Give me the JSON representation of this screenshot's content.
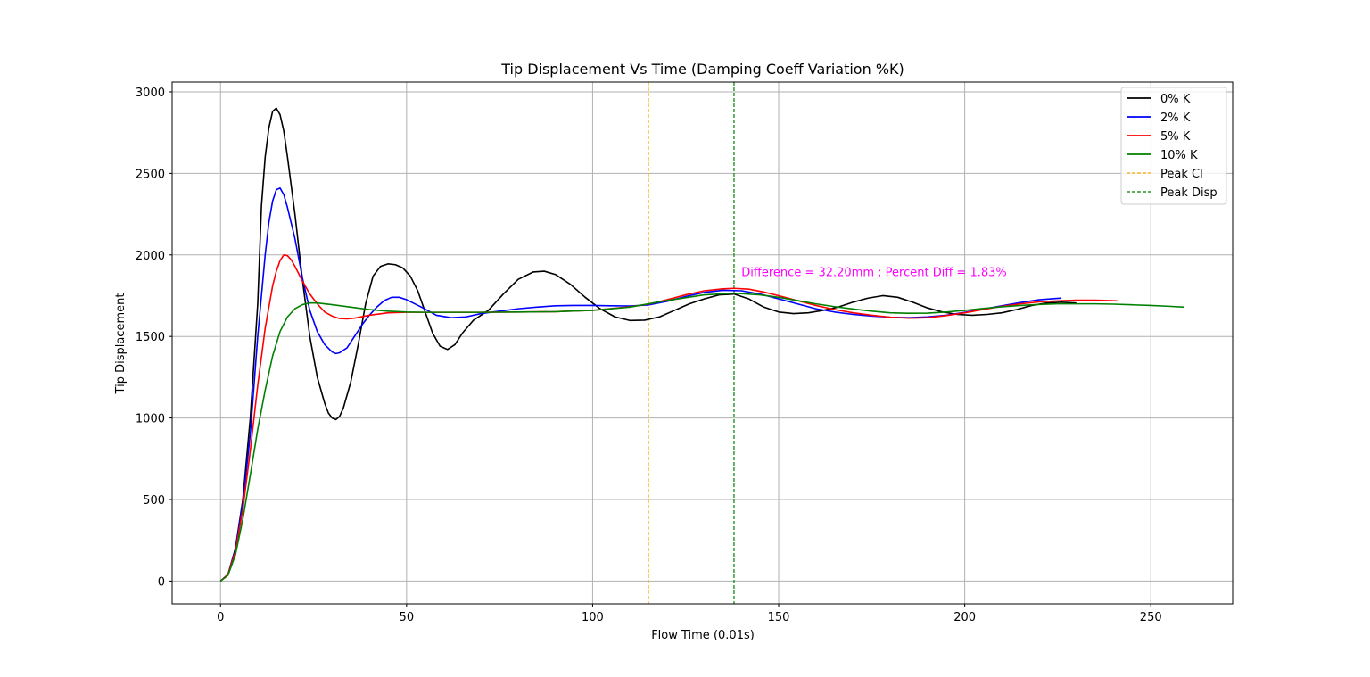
{
  "chart_data": {
    "type": "line",
    "title": "Tip Displacement Vs Time (Damping Coeff Variation %K)",
    "xlabel": "Flow Time (0.01s)",
    "ylabel": "Tip Displacement",
    "xlim": [
      -13,
      272
    ],
    "ylim": [
      -140,
      3060
    ],
    "xticks": [
      0,
      50,
      100,
      150,
      200,
      250
    ],
    "yticks": [
      0,
      500,
      1000,
      1500,
      2000,
      2500,
      3000
    ],
    "grid": true,
    "legend_position": "top-right",
    "series": [
      {
        "name": "0% K",
        "color": "#000000",
        "points": [
          [
            0,
            0
          ],
          [
            2,
            40
          ],
          [
            4,
            200
          ],
          [
            6,
            500
          ],
          [
            8,
            1000
          ],
          [
            10,
            1700
          ],
          [
            11,
            2300
          ],
          [
            12,
            2600
          ],
          [
            13,
            2780
          ],
          [
            14,
            2880
          ],
          [
            15,
            2900
          ],
          [
            16,
            2860
          ],
          [
            17,
            2760
          ],
          [
            18,
            2600
          ],
          [
            20,
            2250
          ],
          [
            22,
            1850
          ],
          [
            24,
            1500
          ],
          [
            26,
            1250
          ],
          [
            28,
            1090
          ],
          [
            29,
            1030
          ],
          [
            30,
            1000
          ],
          [
            31,
            990
          ],
          [
            32,
            1010
          ],
          [
            33,
            1060
          ],
          [
            35,
            1220
          ],
          [
            37,
            1450
          ],
          [
            39,
            1700
          ],
          [
            41,
            1870
          ],
          [
            43,
            1930
          ],
          [
            45,
            1945
          ],
          [
            47,
            1940
          ],
          [
            49,
            1920
          ],
          [
            51,
            1870
          ],
          [
            53,
            1780
          ],
          [
            55,
            1650
          ],
          [
            57,
            1520
          ],
          [
            59,
            1440
          ],
          [
            61,
            1420
          ],
          [
            63,
            1450
          ],
          [
            65,
            1520
          ],
          [
            68,
            1600
          ],
          [
            72,
            1660
          ],
          [
            76,
            1760
          ],
          [
            80,
            1850
          ],
          [
            84,
            1895
          ],
          [
            87,
            1900
          ],
          [
            90,
            1880
          ],
          [
            94,
            1820
          ],
          [
            98,
            1740
          ],
          [
            102,
            1670
          ],
          [
            106,
            1620
          ],
          [
            110,
            1598
          ],
          [
            114,
            1600
          ],
          [
            118,
            1620
          ],
          [
            122,
            1660
          ],
          [
            126,
            1700
          ],
          [
            130,
            1730
          ],
          [
            134,
            1755
          ],
          [
            138,
            1760
          ],
          [
            142,
            1730
          ],
          [
            146,
            1680
          ],
          [
            150,
            1650
          ],
          [
            154,
            1640
          ],
          [
            158,
            1645
          ],
          [
            162,
            1660
          ],
          [
            166,
            1680
          ],
          [
            170,
            1710
          ],
          [
            174,
            1735
          ],
          [
            178,
            1750
          ],
          [
            182,
            1740
          ],
          [
            186,
            1710
          ],
          [
            190,
            1675
          ],
          [
            194,
            1650
          ],
          [
            198,
            1635
          ],
          [
            202,
            1630
          ],
          [
            206,
            1635
          ],
          [
            210,
            1645
          ],
          [
            214,
            1665
          ],
          [
            218,
            1690
          ],
          [
            222,
            1705
          ],
          [
            226,
            1710
          ],
          [
            230,
            1705
          ]
        ]
      },
      {
        "name": "2% K",
        "color": "#0000ff",
        "points": [
          [
            0,
            0
          ],
          [
            2,
            40
          ],
          [
            4,
            190
          ],
          [
            6,
            480
          ],
          [
            8,
            900
          ],
          [
            10,
            1500
          ],
          [
            12,
            2000
          ],
          [
            13,
            2200
          ],
          [
            14,
            2330
          ],
          [
            15,
            2400
          ],
          [
            16,
            2410
          ],
          [
            17,
            2370
          ],
          [
            18,
            2290
          ],
          [
            20,
            2100
          ],
          [
            22,
            1860
          ],
          [
            24,
            1660
          ],
          [
            26,
            1530
          ],
          [
            28,
            1450
          ],
          [
            30,
            1405
          ],
          [
            31,
            1395
          ],
          [
            32,
            1400
          ],
          [
            34,
            1430
          ],
          [
            36,
            1500
          ],
          [
            38,
            1570
          ],
          [
            40,
            1630
          ],
          [
            42,
            1680
          ],
          [
            44,
            1720
          ],
          [
            46,
            1740
          ],
          [
            48,
            1740
          ],
          [
            50,
            1725
          ],
          [
            54,
            1680
          ],
          [
            58,
            1630
          ],
          [
            62,
            1615
          ],
          [
            66,
            1620
          ],
          [
            70,
            1640
          ],
          [
            75,
            1655
          ],
          [
            80,
            1670
          ],
          [
            85,
            1680
          ],
          [
            90,
            1688
          ],
          [
            95,
            1690
          ],
          [
            100,
            1690
          ],
          [
            105,
            1688
          ],
          [
            110,
            1687
          ],
          [
            115,
            1693
          ],
          [
            120,
            1715
          ],
          [
            125,
            1745
          ],
          [
            130,
            1770
          ],
          [
            135,
            1783
          ],
          [
            140,
            1780
          ],
          [
            145,
            1760
          ],
          [
            150,
            1730
          ],
          [
            155,
            1700
          ],
          [
            160,
            1670
          ],
          [
            165,
            1650
          ],
          [
            170,
            1635
          ],
          [
            175,
            1625
          ],
          [
            180,
            1618
          ],
          [
            185,
            1615
          ],
          [
            190,
            1620
          ],
          [
            195,
            1630
          ],
          [
            200,
            1648
          ],
          [
            205,
            1668
          ],
          [
            210,
            1688
          ],
          [
            215,
            1708
          ],
          [
            220,
            1725
          ],
          [
            226,
            1735
          ]
        ]
      },
      {
        "name": "5% K",
        "color": "#ff0000",
        "points": [
          [
            0,
            0
          ],
          [
            2,
            40
          ],
          [
            4,
            180
          ],
          [
            6,
            440
          ],
          [
            8,
            800
          ],
          [
            10,
            1200
          ],
          [
            12,
            1550
          ],
          [
            14,
            1810
          ],
          [
            15,
            1900
          ],
          [
            16,
            1965
          ],
          [
            17,
            2000
          ],
          [
            18,
            1995
          ],
          [
            19,
            1970
          ],
          [
            20,
            1930
          ],
          [
            22,
            1840
          ],
          [
            24,
            1760
          ],
          [
            26,
            1700
          ],
          [
            28,
            1650
          ],
          [
            30,
            1625
          ],
          [
            32,
            1610
          ],
          [
            34,
            1608
          ],
          [
            36,
            1612
          ],
          [
            40,
            1630
          ],
          [
            45,
            1645
          ],
          [
            50,
            1648
          ],
          [
            55,
            1648
          ],
          [
            60,
            1648
          ],
          [
            70,
            1648
          ],
          [
            80,
            1650
          ],
          [
            90,
            1652
          ],
          [
            100,
            1660
          ],
          [
            110,
            1682
          ],
          [
            115,
            1698
          ],
          [
            120,
            1725
          ],
          [
            125,
            1755
          ],
          [
            130,
            1780
          ],
          [
            135,
            1792
          ],
          [
            138,
            1795
          ],
          [
            142,
            1790
          ],
          [
            146,
            1772
          ],
          [
            150,
            1750
          ],
          [
            155,
            1720
          ],
          [
            160,
            1690
          ],
          [
            165,
            1665
          ],
          [
            170,
            1645
          ],
          [
            175,
            1630
          ],
          [
            180,
            1618
          ],
          [
            185,
            1612
          ],
          [
            190,
            1615
          ],
          [
            195,
            1628
          ],
          [
            200,
            1645
          ],
          [
            205,
            1665
          ],
          [
            210,
            1685
          ],
          [
            215,
            1700
          ],
          [
            220,
            1712
          ],
          [
            225,
            1718
          ],
          [
            230,
            1722
          ],
          [
            235,
            1722
          ],
          [
            241,
            1718
          ]
        ]
      },
      {
        "name": "10% K",
        "color": "#008000",
        "points": [
          [
            0,
            0
          ],
          [
            2,
            35
          ],
          [
            4,
            160
          ],
          [
            6,
            380
          ],
          [
            8,
            650
          ],
          [
            10,
            930
          ],
          [
            12,
            1170
          ],
          [
            14,
            1380
          ],
          [
            16,
            1530
          ],
          [
            18,
            1620
          ],
          [
            20,
            1670
          ],
          [
            22,
            1695
          ],
          [
            24,
            1705
          ],
          [
            26,
            1705
          ],
          [
            30,
            1695
          ],
          [
            35,
            1680
          ],
          [
            40,
            1665
          ],
          [
            45,
            1655
          ],
          [
            50,
            1650
          ],
          [
            55,
            1648
          ],
          [
            60,
            1648
          ],
          [
            70,
            1648
          ],
          [
            80,
            1650
          ],
          [
            90,
            1652
          ],
          [
            100,
            1660
          ],
          [
            110,
            1680
          ],
          [
            120,
            1720
          ],
          [
            130,
            1755
          ],
          [
            138,
            1765
          ],
          [
            145,
            1755
          ],
          [
            150,
            1740
          ],
          [
            155,
            1720
          ],
          [
            160,
            1700
          ],
          [
            165,
            1683
          ],
          [
            170,
            1668
          ],
          [
            175,
            1655
          ],
          [
            180,
            1645
          ],
          [
            185,
            1642
          ],
          [
            190,
            1643
          ],
          [
            195,
            1650
          ],
          [
            200,
            1660
          ],
          [
            205,
            1672
          ],
          [
            210,
            1682
          ],
          [
            215,
            1690
          ],
          [
            220,
            1696
          ],
          [
            225,
            1700
          ],
          [
            230,
            1700
          ],
          [
            235,
            1700
          ],
          [
            240,
            1698
          ],
          [
            245,
            1694
          ],
          [
            250,
            1690
          ],
          [
            255,
            1685
          ],
          [
            259,
            1680
          ]
        ]
      }
    ],
    "vlines": [
      {
        "name": "Peak Cl",
        "x": 115,
        "color": "#ffa500",
        "dashed": true
      },
      {
        "name": "Peak Disp",
        "x": 138,
        "color": "#008000",
        "dashed": true
      }
    ],
    "annotation": {
      "text": "Difference = 32.20mm ; Percent Diff = 1.83%",
      "x": 140,
      "y": 1870,
      "color": "#ff00ff"
    }
  }
}
